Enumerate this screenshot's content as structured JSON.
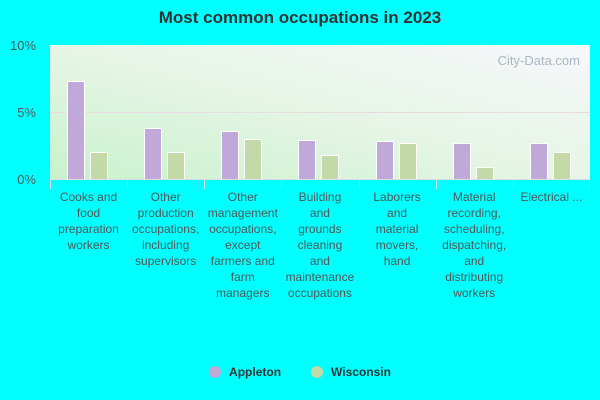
{
  "chart_data": {
    "type": "bar",
    "title": "Most common occupations in 2023",
    "xlabel": "",
    "ylabel": "",
    "ylim": [
      0,
      10
    ],
    "yticks": [
      "0%",
      "5%",
      "10%"
    ],
    "grid": true,
    "legend_position": "bottom",
    "categories": [
      "Cooks and food preparation workers",
      "Other production occupations, including supervisors",
      "Other management occupations, except farmers and farm managers",
      "Building and grounds cleaning and maintenance occupations",
      "Laborers and material movers, hand",
      "Material recording, scheduling, dispatching, and distributing workers",
      "Electrical ..."
    ],
    "series": [
      {
        "name": "Appleton",
        "color": "#c0a8d8",
        "values": [
          7.3,
          3.8,
          3.6,
          2.9,
          2.8,
          2.7,
          2.7
        ]
      },
      {
        "name": "Wisconsin",
        "color": "#c4d9a8",
        "values": [
          2.0,
          2.0,
          3.0,
          1.8,
          2.7,
          0.9,
          2.0
        ]
      }
    ]
  },
  "labels": [
    "Cooks and\nfood\npreparation\nworkers",
    "Other\nproduction\noccupations,\nincluding\nsupervisors",
    "Other\nmanagement\noccupations,\nexcept\nfarmers and\nfarm\nmanagers",
    "Building\nand\ngrounds\ncleaning\nand\nmaintenance\noccupations",
    "Laborers\nand\nmaterial\nmovers,\nhand",
    "Material\nrecording,\nscheduling,\ndispatching,\nand\ndistributing\nworkers",
    "Electrical ..."
  ],
  "watermark": "City-Data.com",
  "legend": [
    {
      "label": "Appleton",
      "color": "#c0a8d8"
    },
    {
      "label": "Wisconsin",
      "color": "#c4d9a8"
    }
  ]
}
